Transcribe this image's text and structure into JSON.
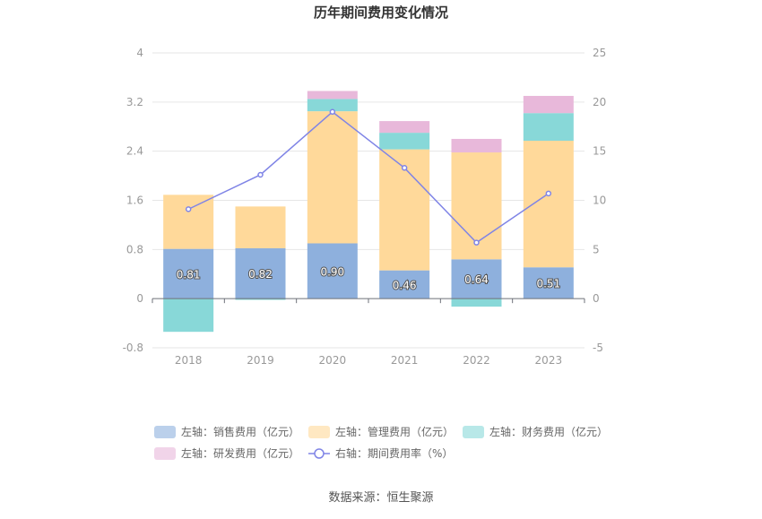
{
  "colors": {
    "sales": "#8eb0dd",
    "mgmt": "#ffd99a",
    "finance": "#88d8d8",
    "rnd": "#e8b8da",
    "rate": "#7f84e6",
    "axis_text": "#999999",
    "grid": "#e6e6e6",
    "title": "#333333"
  },
  "chart_data": {
    "type": "bar",
    "title": "历年期间费用变化情况",
    "source": "数据来源：恒生聚源",
    "categories": [
      "2018",
      "2019",
      "2020",
      "2021",
      "2022",
      "2023"
    ],
    "left_axis": {
      "min": -0.8,
      "max": 4,
      "ticks": [
        -0.8,
        0,
        0.8,
        1.6,
        2.4,
        3.2,
        4
      ],
      "tick_labels": [
        "-0.8",
        "0",
        "0.8",
        "1.6",
        "2.4",
        "3.2",
        "4"
      ]
    },
    "right_axis": {
      "min": -5,
      "max": 25,
      "ticks": [
        -5,
        0,
        5,
        10,
        15,
        20,
        25
      ],
      "tick_labels": [
        "-5",
        "0",
        "5",
        "10",
        "15",
        "20",
        "25"
      ]
    },
    "series": [
      {
        "key": "sales",
        "name": "左轴：销售费用（亿元）",
        "axis": "left",
        "type": "bar",
        "color": "#8eb0dd",
        "values": [
          0.81,
          0.82,
          0.9,
          0.46,
          0.64,
          0.51
        ],
        "labels": [
          "0.81",
          "0.82",
          "0.90",
          "0.46",
          "0.64",
          "0.51"
        ]
      },
      {
        "key": "mgmt",
        "name": "左轴：管理费用（亿元）",
        "axis": "left",
        "type": "bar",
        "color": "#ffd99a",
        "values": [
          0.88,
          0.68,
          2.15,
          1.97,
          1.74,
          2.06
        ]
      },
      {
        "key": "finance",
        "name": "左轴：财务费用（亿元）",
        "axis": "left",
        "type": "bar",
        "color": "#88d8d8",
        "values": [
          -0.54,
          -0.02,
          0.2,
          0.27,
          -0.13,
          0.45
        ]
      },
      {
        "key": "rnd",
        "name": "左轴：研发费用（亿元）",
        "axis": "left",
        "type": "bar",
        "color": "#e8b8da",
        "values": [
          0.0,
          0.0,
          0.13,
          0.19,
          0.22,
          0.28
        ]
      },
      {
        "key": "rate",
        "name": "右轴：期间费用率（%）",
        "axis": "right",
        "type": "line",
        "color": "#7f84e6",
        "values": [
          9.1,
          12.6,
          19.0,
          13.3,
          5.7,
          10.7
        ]
      }
    ],
    "legend_position": "bottom",
    "grid": true
  }
}
